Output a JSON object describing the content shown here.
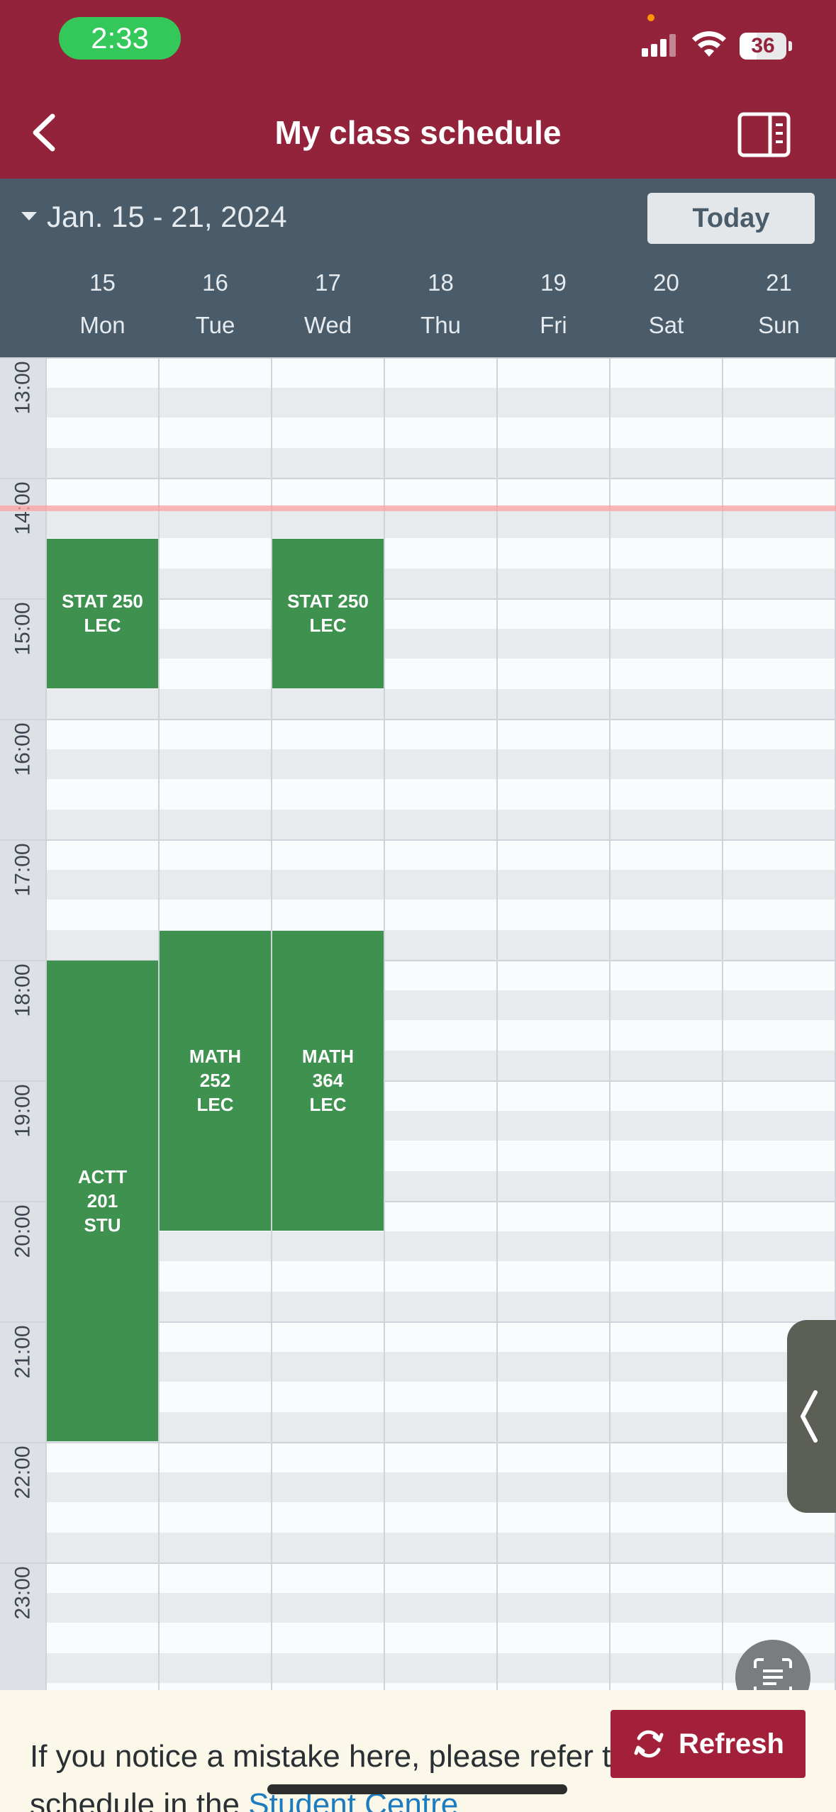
{
  "status_bar": {
    "time": "2:33",
    "battery": "36"
  },
  "nav": {
    "title": "My class schedule",
    "back_icon": "chevron-left-icon",
    "panel_icon": "side-panel-icon"
  },
  "week": {
    "range": "Jan. 15 - 21, 2024",
    "today_label": "Today",
    "days": [
      {
        "num": "15",
        "name": "Mon"
      },
      {
        "num": "16",
        "name": "Tue"
      },
      {
        "num": "17",
        "name": "Wed"
      },
      {
        "num": "18",
        "name": "Thu"
      },
      {
        "num": "19",
        "name": "Fri"
      },
      {
        "num": "20",
        "name": "Sat"
      },
      {
        "num": "21",
        "name": "Sun"
      }
    ]
  },
  "hours": [
    "13:00",
    "14:00",
    "15:00",
    "16:00",
    "17:00",
    "18:00",
    "19:00",
    "20:00",
    "21:00",
    "22:00",
    "23:00"
  ],
  "grid_start_hour": 12.75,
  "current_time": 14.25,
  "events": [
    {
      "label": "STAT 250\nLEC",
      "day": 0,
      "start": 14.5,
      "end": 15.75
    },
    {
      "label": "STAT 250\nLEC",
      "day": 2,
      "start": 14.5,
      "end": 15.75
    },
    {
      "label": "ACTT\n201\nSTU",
      "day": 0,
      "start": 18.0,
      "end": 22.0
    },
    {
      "label": "MATH\n252\nLEC",
      "day": 1,
      "start": 17.75,
      "end": 20.25
    },
    {
      "label": "MATH\n364\nLEC",
      "day": 2,
      "start": 17.75,
      "end": 20.25
    }
  ],
  "colors": {
    "brand": "#93233a",
    "header": "#4a5b69",
    "event": "#3f914f",
    "refresh": "#a3203a"
  },
  "footer": {
    "text": "If you notice a mistake here, please refer to your schedule in the",
    "link": "Student Centre"
  },
  "refresh_label": "Refresh"
}
